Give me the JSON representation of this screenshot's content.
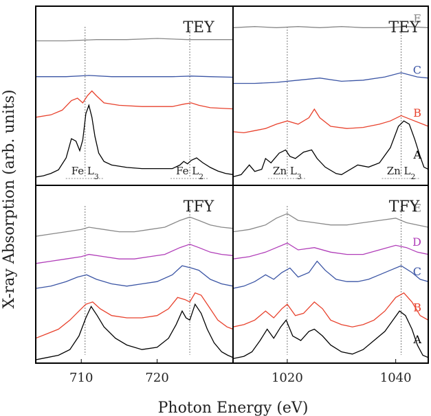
{
  "figure": {
    "ylabel": "X-ray Absorption (arb. units)",
    "xlabel": "Photon Energy (eV)"
  },
  "chart_data": [
    {
      "type": "line",
      "panel": "top-left",
      "title": "TEY",
      "xlim": [
        704,
        730
      ],
      "x_ticks": [],
      "annotations": [
        "Fe L3",
        "Fe L2"
      ],
      "guide_lines_x": [
        710.5,
        724.3
      ],
      "series": [
        {
          "name": "A",
          "color": "#000000",
          "label_visible": false,
          "x": [
            704,
            705,
            706,
            707,
            708,
            708.7,
            709.3,
            709.8,
            710.2,
            710.6,
            711.0,
            711.4,
            711.8,
            712.3,
            713,
            714,
            716,
            718,
            720,
            722,
            723,
            723.5,
            724.0,
            724.5,
            725.2,
            726,
            727,
            728,
            729,
            730
          ],
          "y": [
            0.02,
            0.03,
            0.05,
            0.08,
            0.18,
            0.34,
            0.32,
            0.24,
            0.33,
            0.55,
            0.62,
            0.52,
            0.36,
            0.22,
            0.15,
            0.12,
            0.1,
            0.09,
            0.09,
            0.09,
            0.12,
            0.15,
            0.13,
            0.16,
            0.18,
            0.14,
            0.1,
            0.07,
            0.05,
            0.04
          ]
        },
        {
          "name": "B",
          "color": "#e8412c",
          "label_visible": false,
          "x": [
            704,
            706,
            707.5,
            708.7,
            709.5,
            710.2,
            710.8,
            711.4,
            712,
            713,
            715,
            718,
            720,
            722,
            723.5,
            724.5,
            725.5,
            727,
            730
          ],
          "y": [
            0.52,
            0.54,
            0.58,
            0.66,
            0.68,
            0.64,
            0.7,
            0.74,
            0.7,
            0.64,
            0.62,
            0.61,
            0.61,
            0.61,
            0.63,
            0.64,
            0.62,
            0.6,
            0.59
          ]
        },
        {
          "name": "C",
          "color": "#3a54a4",
          "label_visible": false,
          "x": [
            704,
            708,
            711,
            714,
            718,
            722,
            724.5,
            727,
            730
          ],
          "y": [
            0.86,
            0.86,
            0.87,
            0.86,
            0.86,
            0.86,
            0.865,
            0.86,
            0.855
          ]
        },
        {
          "name": "E",
          "color": "#888888",
          "label_visible": false,
          "x": [
            704,
            708,
            712,
            716,
            720,
            724,
            727,
            730
          ],
          "y": [
            1.16,
            1.16,
            1.17,
            1.17,
            1.18,
            1.17,
            1.17,
            1.17
          ]
        }
      ]
    },
    {
      "type": "line",
      "panel": "top-right",
      "title": "TEY",
      "xlim": [
        1010,
        1046
      ],
      "x_ticks": [],
      "annotations": [
        "Zn L3",
        "Zn L2"
      ],
      "guide_lines_x": [
        1020,
        1041
      ],
      "series": [
        {
          "name": "A",
          "color": "#000000",
          "x": [
            1010,
            1011.5,
            1013,
            1014,
            1015.3,
            1016,
            1017,
            1018.5,
            1019.7,
            1020.5,
            1021.5,
            1023,
            1024.5,
            1025.5,
            1027,
            1029,
            1030,
            1031,
            1033,
            1035,
            1037,
            1039,
            1040.5,
            1041.5,
            1042.5,
            1043.5,
            1044.5,
            1045.2,
            1046
          ],
          "y": [
            0.03,
            0.05,
            0.14,
            0.08,
            0.1,
            0.2,
            0.16,
            0.25,
            0.28,
            0.22,
            0.2,
            0.26,
            0.28,
            0.2,
            0.12,
            0.06,
            0.05,
            0.08,
            0.14,
            0.12,
            0.16,
            0.3,
            0.5,
            0.55,
            0.52,
            0.38,
            0.22,
            0.12,
            0.1
          ]
        },
        {
          "name": "B",
          "color": "#e8412c",
          "x": [
            1010,
            1012,
            1014,
            1016,
            1018,
            1020,
            1022,
            1024,
            1025,
            1026,
            1028,
            1031,
            1034,
            1037,
            1039,
            1041,
            1043,
            1045,
            1046
          ],
          "y": [
            0.45,
            0.44,
            0.46,
            0.48,
            0.52,
            0.55,
            0.52,
            0.58,
            0.66,
            0.58,
            0.5,
            0.48,
            0.49,
            0.52,
            0.55,
            0.6,
            0.56,
            0.52,
            0.5
          ]
        },
        {
          "name": "C",
          "color": "#3a54a4",
          "x": [
            1010,
            1014,
            1018,
            1022,
            1026,
            1030,
            1034,
            1038,
            1041,
            1044,
            1046
          ],
          "y": [
            0.9,
            0.9,
            0.91,
            0.93,
            0.95,
            0.92,
            0.93,
            0.96,
            1.0,
            0.96,
            0.95
          ]
        },
        {
          "name": "E",
          "color": "#888888",
          "x": [
            1010,
            1014,
            1018,
            1022,
            1026,
            1030,
            1034,
            1038,
            1042,
            1046
          ],
          "y": [
            1.42,
            1.43,
            1.42,
            1.43,
            1.42,
            1.43,
            1.42,
            1.42,
            1.43,
            1.42
          ]
        }
      ]
    },
    {
      "type": "line",
      "panel": "bottom-left",
      "title": "TFY",
      "xlim": [
        704,
        730
      ],
      "x_ticks": [
        710,
        720
      ],
      "guide_lines_x": [
        710.5,
        724.3
      ],
      "series": [
        {
          "name": "A",
          "color": "#000000",
          "label_visible": false,
          "x": [
            704,
            705.5,
            707,
            708.5,
            709.7,
            710.6,
            711.3,
            712.1,
            713,
            714.5,
            716,
            718,
            720,
            721.5,
            722.5,
            723.3,
            723.8,
            724.3,
            725,
            725.8,
            726.6,
            727.5,
            728.5,
            729.3,
            730
          ],
          "y": [
            0.01,
            0.03,
            0.05,
            0.1,
            0.22,
            0.38,
            0.48,
            0.4,
            0.3,
            0.2,
            0.14,
            0.1,
            0.12,
            0.2,
            0.32,
            0.44,
            0.38,
            0.36,
            0.5,
            0.42,
            0.28,
            0.16,
            0.08,
            0.05,
            0.03
          ]
        },
        {
          "name": "B",
          "color": "#e8412c",
          "label_visible": false,
          "x": [
            704,
            705.5,
            707,
            708.5,
            709.7,
            710.6,
            711.5,
            712.5,
            714,
            716,
            718,
            720,
            721.5,
            722.7,
            723.7,
            724.3,
            725,
            725.8,
            726.8,
            728,
            729.2,
            730
          ],
          "y": [
            0.2,
            0.24,
            0.28,
            0.36,
            0.44,
            0.5,
            0.52,
            0.46,
            0.4,
            0.38,
            0.38,
            0.4,
            0.46,
            0.56,
            0.54,
            0.52,
            0.6,
            0.58,
            0.48,
            0.36,
            0.3,
            0.28
          ]
        },
        {
          "name": "C",
          "color": "#3a54a4",
          "label_visible": false,
          "x": [
            704,
            706,
            708,
            709.5,
            710.7,
            712,
            714,
            716,
            718,
            720,
            722,
            723.3,
            724.5,
            725.5,
            727,
            728.5,
            730
          ],
          "y": [
            0.64,
            0.66,
            0.7,
            0.74,
            0.76,
            0.72,
            0.68,
            0.66,
            0.68,
            0.7,
            0.76,
            0.84,
            0.82,
            0.8,
            0.72,
            0.68,
            0.66
          ]
        },
        {
          "name": "D",
          "color": "#b03cb8",
          "label_visible": false,
          "x": [
            704,
            706,
            708,
            710,
            711,
            713,
            715,
            717,
            719,
            721,
            723,
            724.3,
            725.5,
            727,
            728.5,
            730
          ],
          "y": [
            0.86,
            0.88,
            0.9,
            0.92,
            0.94,
            0.92,
            0.9,
            0.9,
            0.92,
            0.94,
            1.0,
            1.03,
            1.0,
            0.96,
            0.94,
            0.93
          ]
        },
        {
          "name": "E",
          "color": "#888888",
          "label_visible": false,
          "x": [
            704,
            706,
            708,
            710,
            711,
            713,
            715,
            717,
            719,
            721,
            723,
            724.3,
            725.5,
            727,
            728.5,
            730
          ],
          "y": [
            1.1,
            1.12,
            1.14,
            1.16,
            1.18,
            1.16,
            1.14,
            1.14,
            1.16,
            1.18,
            1.24,
            1.27,
            1.24,
            1.2,
            1.18,
            1.17
          ]
        }
      ]
    },
    {
      "type": "line",
      "panel": "bottom-right",
      "title": "TFY",
      "xlim": [
        1010,
        1046
      ],
      "x_ticks": [
        1020,
        1040
      ],
      "guide_lines_x": [
        1020,
        1041
      ],
      "series": [
        {
          "name": "A",
          "color": "#000000",
          "x": [
            1010,
            1012,
            1013.5,
            1015,
            1016.3,
            1017.5,
            1018.8,
            1019.8,
            1021,
            1022.5,
            1024,
            1025,
            1026.5,
            1028,
            1030,
            1032,
            1034,
            1036,
            1038,
            1039.5,
            1040.7,
            1041.8,
            1043,
            1044,
            1045,
            1046
          ],
          "y": [
            0.02,
            0.04,
            0.08,
            0.18,
            0.28,
            0.2,
            0.3,
            0.36,
            0.22,
            0.18,
            0.26,
            0.28,
            0.22,
            0.14,
            0.08,
            0.06,
            0.1,
            0.18,
            0.26,
            0.36,
            0.44,
            0.4,
            0.28,
            0.14,
            0.05,
            0.03
          ]
        },
        {
          "name": "B",
          "color": "#e8412c",
          "x": [
            1010,
            1012,
            1014,
            1016,
            1017.5,
            1019,
            1020,
            1021.5,
            1023,
            1025,
            1026.5,
            1028,
            1030,
            1032,
            1034,
            1036,
            1038,
            1040,
            1041.5,
            1043,
            1044.5,
            1046
          ],
          "y": [
            0.3,
            0.32,
            0.36,
            0.44,
            0.38,
            0.46,
            0.5,
            0.4,
            0.42,
            0.52,
            0.46,
            0.36,
            0.32,
            0.3,
            0.32,
            0.36,
            0.44,
            0.56,
            0.6,
            0.52,
            0.4,
            0.36
          ]
        },
        {
          "name": "C",
          "color": "#3a54a4",
          "x": [
            1010,
            1012,
            1014,
            1016,
            1017.5,
            1019,
            1020.5,
            1022,
            1024,
            1025.5,
            1027,
            1029,
            1031,
            1033,
            1035,
            1037,
            1039,
            1041,
            1043,
            1044.5,
            1046
          ],
          "y": [
            0.64,
            0.66,
            0.7,
            0.76,
            0.72,
            0.78,
            0.82,
            0.74,
            0.78,
            0.88,
            0.8,
            0.72,
            0.7,
            0.7,
            0.72,
            0.76,
            0.8,
            0.84,
            0.78,
            0.72,
            0.7
          ]
        },
        {
          "name": "D",
          "color": "#b03cb8",
          "x": [
            1010,
            1013,
            1016,
            1018,
            1020,
            1022,
            1025,
            1028,
            1031,
            1034,
            1037,
            1040,
            1042,
            1044,
            1046
          ],
          "y": [
            0.9,
            0.92,
            0.96,
            1.0,
            1.04,
            0.98,
            1.0,
            0.96,
            0.94,
            0.94,
            0.98,
            1.02,
            1.0,
            0.96,
            0.94
          ]
        },
        {
          "name": "E",
          "color": "#888888",
          "x": [
            1010,
            1013,
            1016,
            1018,
            1020,
            1022,
            1025,
            1028,
            1031,
            1034,
            1037,
            1040,
            1042,
            1044,
            1046
          ],
          "y": [
            1.14,
            1.16,
            1.2,
            1.26,
            1.3,
            1.24,
            1.22,
            1.2,
            1.2,
            1.22,
            1.24,
            1.26,
            1.22,
            1.2,
            1.18
          ]
        }
      ]
    }
  ]
}
